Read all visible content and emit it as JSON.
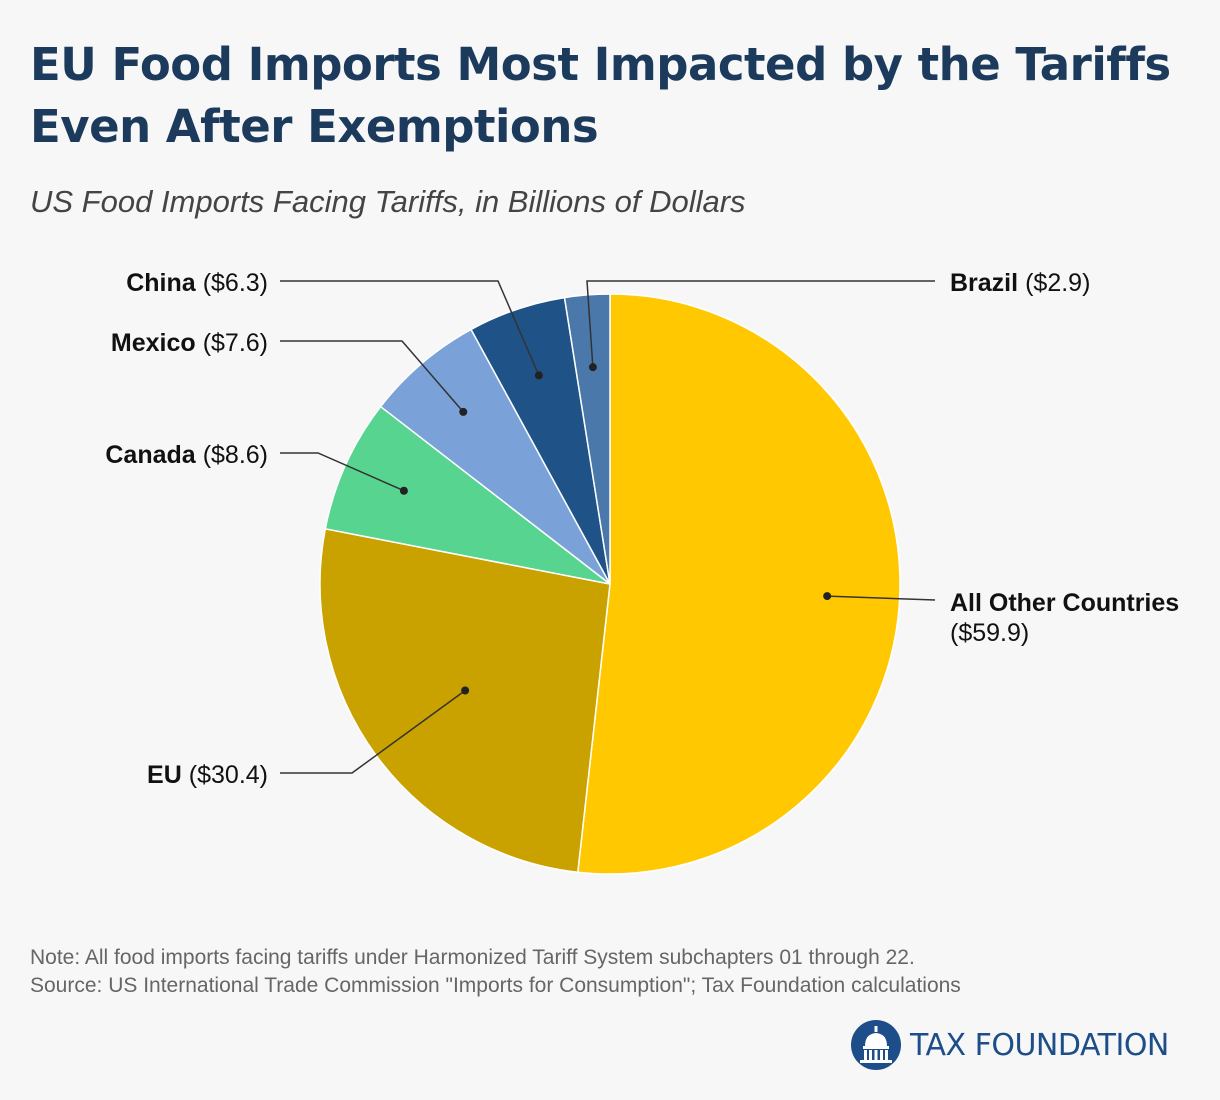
{
  "header": {
    "title_line1": "EU Food Imports Most Impacted by the Tariffs",
    "title_line2": "Even After Exemptions",
    "subtitle": "US Food Imports Facing Tariffs, in Billions of Dollars"
  },
  "chart_data": {
    "type": "pie",
    "title": "EU Food Imports Most Impacted by the Tariffs Even After Exemptions",
    "subtitle": "US Food Imports Facing Tariffs, in Billions of Dollars",
    "unit": "Billions of Dollars",
    "slices": [
      {
        "name": "All Other Countries",
        "value": 59.9,
        "value_label": "($59.9)",
        "color": "#ffc800"
      },
      {
        "name": "EU",
        "value": 30.4,
        "value_label": "($30.4)",
        "color": "#c9a200"
      },
      {
        "name": "Canada",
        "value": 8.6,
        "value_label": "($8.6)",
        "color": "#56d490"
      },
      {
        "name": "Mexico",
        "value": 7.6,
        "value_label": "($7.6)",
        "color": "#7aa2d9"
      },
      {
        "name": "China",
        "value": 6.3,
        "value_label": "($6.3)",
        "color": "#1f5287"
      },
      {
        "name": "Brazil",
        "value": 2.9,
        "value_label": "($2.9)",
        "color": "#4a78aa"
      }
    ]
  },
  "footer": {
    "note": "Note: All food imports facing tariffs under Harmonized Tariff System subchapters 01 through 22.",
    "source": "Source: US International Trade Commission \"Imports for Consumption\"; Tax Foundation calculations"
  },
  "logo": {
    "text": "TAX FOUNDATION",
    "color": "#1d4e89"
  }
}
